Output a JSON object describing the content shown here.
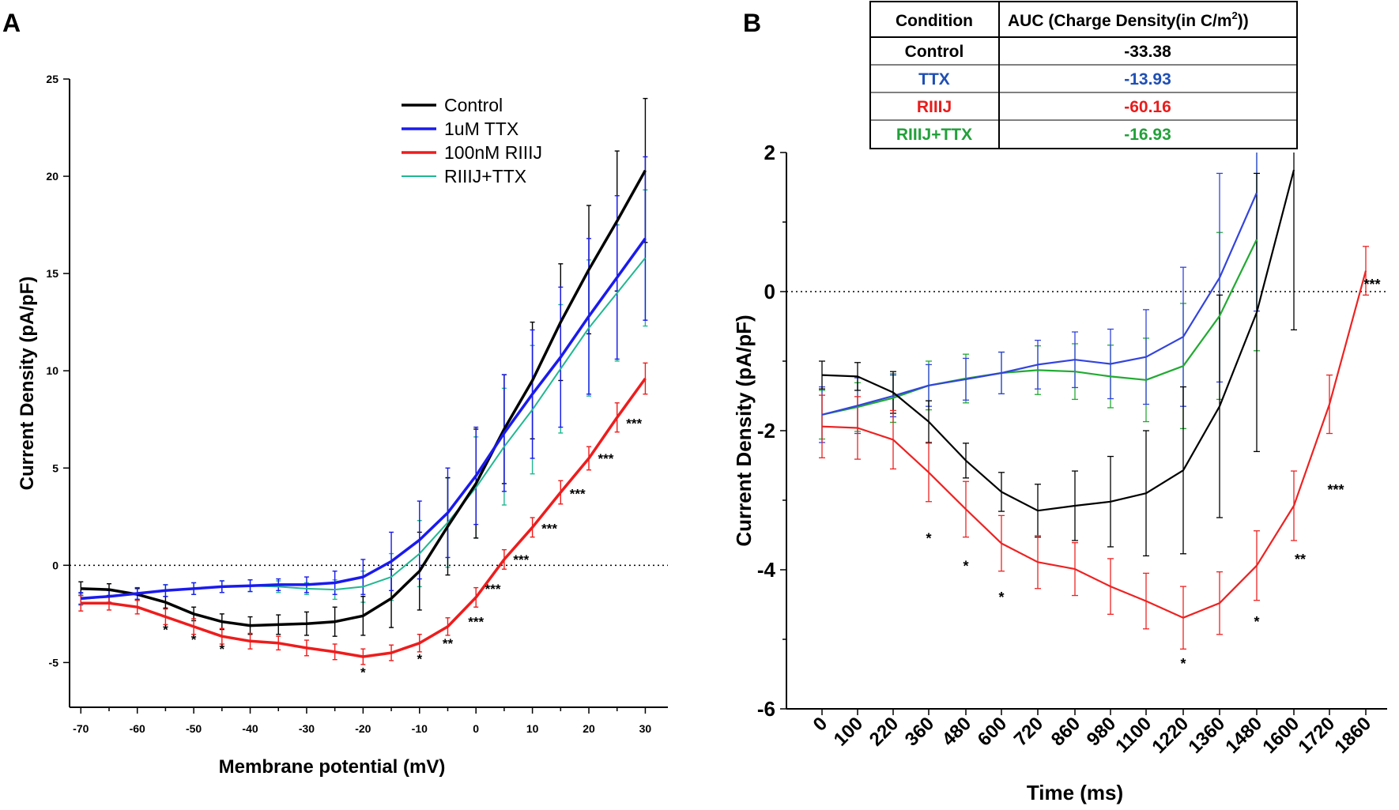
{
  "chart_data": [
    {
      "panel": "A",
      "type": "line",
      "xlabel": "Membrane potential (mV)",
      "ylabel": "Current Density (pA/pF)",
      "xlim": [
        -72,
        34
      ],
      "ylim": [
        -7.3,
        25
      ],
      "xticks": [
        -70,
        -60,
        -50,
        -40,
        -30,
        -20,
        -10,
        0,
        10,
        20,
        30
      ],
      "yticks": [
        -5,
        0,
        5,
        10,
        15,
        20,
        25
      ],
      "x": [
        -70,
        -65,
        -60,
        -55,
        -50,
        -45,
        -40,
        -35,
        -30,
        -25,
        -20,
        -15,
        -10,
        -5,
        0,
        5,
        10,
        15,
        20,
        25,
        30
      ],
      "legend_position": "top-right",
      "series": [
        {
          "name": "Control",
          "color": "#000000",
          "width": 3.5,
          "values": [
            -1.2,
            -1.25,
            -1.5,
            -1.9,
            -2.5,
            -2.9,
            -3.1,
            -3.05,
            -3.0,
            -2.9,
            -2.6,
            -1.7,
            -0.3,
            2.0,
            4.2,
            7.0,
            9.5,
            12.5,
            15.2,
            17.7,
            20.3
          ],
          "errors": [
            0.35,
            0.3,
            0.3,
            0.3,
            0.35,
            0.4,
            0.45,
            0.5,
            0.6,
            0.75,
            1.0,
            1.5,
            2.0,
            2.5,
            2.8,
            2.8,
            3.0,
            3.0,
            3.3,
            3.6,
            3.7
          ]
        },
        {
          "name": "1uM TTX",
          "color": "#1a1aee",
          "width": 3.5,
          "values": [
            -1.7,
            -1.6,
            -1.45,
            -1.3,
            -1.2,
            -1.1,
            -1.05,
            -1.0,
            -1.0,
            -0.9,
            -0.6,
            0.2,
            1.3,
            2.7,
            4.6,
            6.8,
            8.8,
            10.7,
            12.8,
            14.8,
            16.8
          ],
          "errors": [
            0.3,
            0.3,
            0.3,
            0.3,
            0.3,
            0.3,
            0.3,
            0.3,
            0.4,
            0.6,
            0.9,
            1.5,
            2.0,
            2.3,
            2.5,
            3.0,
            3.3,
            3.6,
            4.0,
            4.2,
            4.2
          ]
        },
        {
          "name": "100nM RIIIJ",
          "color": "#ee1c1c",
          "width": 3.5,
          "values": [
            -1.95,
            -1.95,
            -2.15,
            -2.65,
            -3.15,
            -3.65,
            -3.9,
            -4.0,
            -4.25,
            -4.45,
            -4.7,
            -4.5,
            -4.0,
            -3.15,
            -1.65,
            0.3,
            1.95,
            3.75,
            5.5,
            7.6,
            9.6
          ],
          "errors": [
            0.4,
            0.35,
            0.35,
            0.4,
            0.4,
            0.4,
            0.4,
            0.35,
            0.4,
            0.4,
            0.4,
            0.4,
            0.45,
            0.45,
            0.5,
            0.5,
            0.5,
            0.6,
            0.6,
            0.75,
            0.8
          ]
        },
        {
          "name": "RIIIJ+TTX",
          "color": "#20b890",
          "width": 2,
          "values": [
            -1.75,
            -1.6,
            -1.45,
            -1.3,
            -1.2,
            -1.1,
            -1.05,
            -1.1,
            -1.2,
            -1.25,
            -1.1,
            -0.6,
            0.6,
            2.2,
            4.0,
            6.1,
            8.0,
            10.1,
            12.2,
            14.0,
            15.8
          ],
          "errors": [
            0.3,
            0.3,
            0.3,
            0.3,
            0.3,
            0.3,
            0.3,
            0.3,
            0.3,
            0.5,
            0.8,
            1.2,
            1.7,
            2.3,
            2.6,
            3.0,
            3.3,
            3.3,
            3.5,
            3.5,
            3.5
          ]
        }
      ],
      "annotations": [
        {
          "x": -55,
          "y": -3.3,
          "text": "*"
        },
        {
          "x": -50,
          "y": -3.8,
          "text": "*"
        },
        {
          "x": -45,
          "y": -4.3,
          "text": "*"
        },
        {
          "x": -20,
          "y": -5.5,
          "text": "*"
        },
        {
          "x": -10,
          "y": -4.8,
          "text": "*"
        },
        {
          "x": -5,
          "y": -4.0,
          "text": "**"
        },
        {
          "x": 0,
          "y": -2.9,
          "text": "***"
        },
        {
          "x": 3,
          "y": -1.2,
          "text": "***"
        },
        {
          "x": 8,
          "y": 0.3,
          "text": "***"
        },
        {
          "x": 13,
          "y": 1.9,
          "text": "***"
        },
        {
          "x": 18,
          "y": 3.7,
          "text": "***"
        },
        {
          "x": 23,
          "y": 5.5,
          "text": "***"
        },
        {
          "x": 28,
          "y": 7.3,
          "text": "***"
        }
      ]
    },
    {
      "panel": "B",
      "type": "line",
      "xlabel": "Time (ms)",
      "ylabel": "Current Density (pA/pF)",
      "ylim": [
        -6,
        2
      ],
      "yticks": [
        -6,
        -4,
        -2,
        0,
        2
      ],
      "categories": [
        "0",
        "100",
        "220",
        "360",
        "480",
        "600",
        "720",
        "860",
        "980",
        "1100",
        "1220",
        "1360",
        "1480",
        "1600",
        "1720",
        "1860"
      ],
      "series": [
        {
          "name": "Control",
          "color": "#000000",
          "values": [
            -1.2,
            -1.22,
            -1.45,
            -1.87,
            -2.43,
            -2.88,
            -3.15,
            -3.08,
            -3.02,
            -2.9,
            -2.57,
            -1.65,
            -0.3,
            1.75,
            null,
            null
          ],
          "errors": [
            0.2,
            0.2,
            0.3,
            0.3,
            0.25,
            0.28,
            0.38,
            0.5,
            0.65,
            0.9,
            1.2,
            1.6,
            2.0,
            2.3,
            null,
            null
          ]
        },
        {
          "name": "TTX",
          "color": "#3344dd",
          "values": [
            -1.77,
            -1.64,
            -1.5,
            -1.35,
            -1.26,
            -1.17,
            -1.05,
            -0.98,
            -1.04,
            -0.94,
            -0.65,
            0.2,
            1.42,
            null,
            null,
            null
          ],
          "errors": [
            0.4,
            0.4,
            0.3,
            0.3,
            0.3,
            0.3,
            0.35,
            0.4,
            0.5,
            0.68,
            1.0,
            1.5,
            1.7,
            null,
            null,
            null
          ]
        },
        {
          "name": "RIIIJ",
          "color": "#ee2222",
          "values": [
            -1.94,
            -1.96,
            -2.13,
            -2.6,
            -3.13,
            -3.62,
            -3.89,
            -3.99,
            -4.24,
            -4.45,
            -4.69,
            -4.48,
            -3.94,
            -3.08,
            -1.62,
            0.3
          ],
          "errors": [
            0.45,
            0.45,
            0.42,
            0.42,
            0.4,
            0.4,
            0.38,
            0.38,
            0.4,
            0.4,
            0.45,
            0.45,
            0.5,
            0.5,
            0.42,
            0.35
          ]
        },
        {
          "name": "RIIIJ+TTX",
          "color": "#22aa33",
          "values": [
            -1.77,
            -1.66,
            -1.53,
            -1.35,
            -1.25,
            -1.17,
            -1.13,
            -1.15,
            -1.22,
            -1.27,
            -1.07,
            -0.35,
            0.75,
            null,
            null,
            null
          ],
          "errors": [
            0.35,
            0.35,
            0.35,
            0.35,
            0.35,
            0.3,
            0.35,
            0.4,
            0.45,
            0.6,
            0.9,
            1.2,
            1.6,
            null,
            null,
            null
          ]
        }
      ],
      "annotations": [
        {
          "index": 3,
          "y": -3.55,
          "text": "*"
        },
        {
          "index": 4,
          "y": -3.95,
          "text": "*"
        },
        {
          "index": 5,
          "y": -4.4,
          "text": "*"
        },
        {
          "index": 10,
          "y": -5.35,
          "text": "*"
        },
        {
          "index": 12,
          "y": -4.75,
          "text": "*"
        },
        {
          "index": 13,
          "y": -3.85,
          "text": "**"
        },
        {
          "index": 14,
          "y": -2.85,
          "text": "***"
        },
        {
          "index": 15,
          "y": 0.1,
          "text": "***"
        }
      ],
      "table": {
        "header": [
          "Condition",
          "AUC (Charge Density(in C/m",
          "2",
          "))"
        ],
        "rows": [
          {
            "condition": "Control",
            "value": "-33.38",
            "color": "#000000"
          },
          {
            "condition": "TTX",
            "value": "-13.93",
            "color": "#1f4fb4"
          },
          {
            "condition": "RIIIJ",
            "value": "-60.16",
            "color": "#e81c1c"
          },
          {
            "condition": "RIIIJ+TTX",
            "value": "-16.93",
            "color": "#22a03a"
          }
        ]
      }
    }
  ]
}
